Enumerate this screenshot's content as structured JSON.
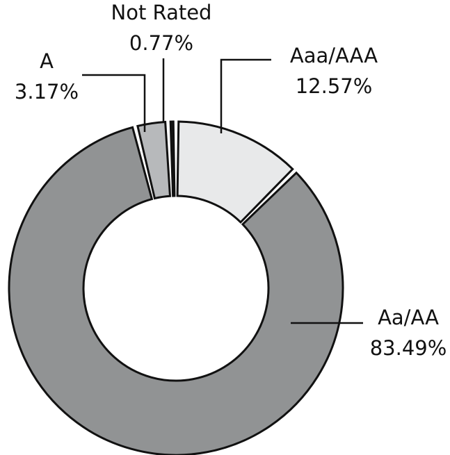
{
  "chart_data": {
    "type": "pie",
    "donut": true,
    "legend": "none",
    "categories": [
      "Aaa/AAA",
      "Aa/AA",
      "A",
      "Not Rated"
    ],
    "values": [
      12.57,
      83.49,
      3.17,
      0.77
    ],
    "labels": [
      "12.57%",
      "83.49%",
      "3.17%",
      "0.77%"
    ],
    "series": [
      {
        "name": "Aaa/AAA",
        "value": 12.57,
        "label": "12.57%",
        "color": "#e8e9ea"
      },
      {
        "name": "Aa/AA",
        "value": 83.49,
        "label": "83.49%",
        "color": "#919394"
      },
      {
        "name": "A",
        "value": 3.17,
        "label": "3.17%",
        "color": "#b7b9bb"
      },
      {
        "name": "Not Rated",
        "value": 0.77,
        "label": "0.77%",
        "color": "#1a1a1a"
      }
    ],
    "colors": {
      "outline": "#111111",
      "background": "#ffffff"
    }
  }
}
